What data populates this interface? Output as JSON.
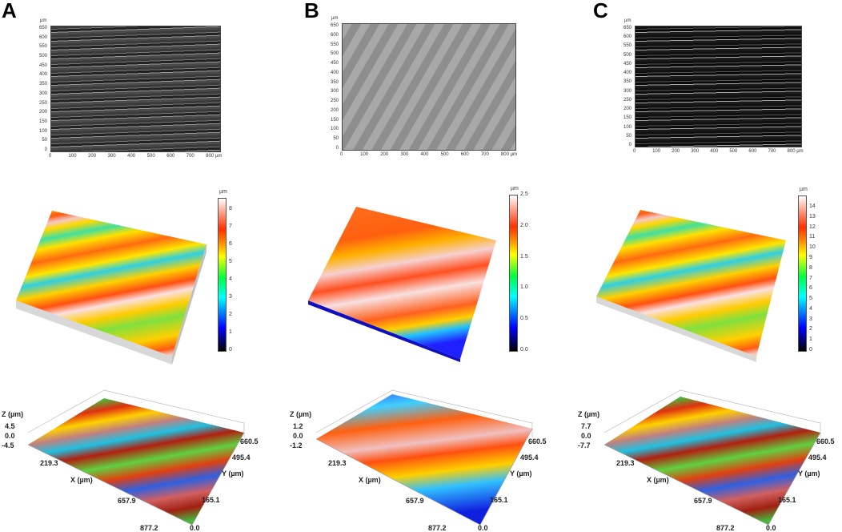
{
  "panels": [
    {
      "label": "A",
      "micrograph": {
        "unit": "µm",
        "y_ticks": [
          "0",
          "50",
          "100",
          "150",
          "200",
          "250",
          "300",
          "350",
          "400",
          "450",
          "500",
          "550",
          "600",
          "650"
        ],
        "x_ticks": [
          "0",
          "100",
          "200",
          "300",
          "400",
          "500",
          "600",
          "700",
          "800 µm"
        ],
        "tone": "dark grey with horizontal scratches"
      },
      "colorbar": {
        "unit": "µm",
        "ticks": [
          "0",
          "1",
          "2",
          "3",
          "4",
          "5",
          "6",
          "7",
          "8"
        ]
      },
      "plot3d": {
        "z_label": "Z (µm)",
        "z_ticks": [
          "4.5",
          "0.0",
          "-4.5"
        ],
        "x_label": "X (µm)",
        "x_ticks": [
          "219.3",
          "657.9",
          "877.2"
        ],
        "y_label": "Y (µm)",
        "y_ticks": [
          "0.0",
          "165.1",
          "495.4",
          "660.5"
        ]
      }
    },
    {
      "label": "B",
      "micrograph": {
        "unit": "µm",
        "y_ticks": [
          "0",
          "50",
          "100",
          "150",
          "200",
          "250",
          "300",
          "350",
          "400",
          "450",
          "500",
          "550",
          "600",
          "650"
        ],
        "x_ticks": [
          "0",
          "100",
          "200",
          "300",
          "400",
          "500",
          "600",
          "700",
          "800 µm"
        ],
        "tone": "light grey smooth with diagonal bands"
      },
      "colorbar": {
        "unit": "µm",
        "ticks": [
          "0.0",
          "0.5",
          "1.0",
          "1.5",
          "2.0",
          "2.5"
        ]
      },
      "plot3d": {
        "z_label": "Z (µm)",
        "z_ticks": [
          "1.2",
          "0.0",
          "-1.2"
        ],
        "x_label": "X (µm)",
        "x_ticks": [
          "219.3",
          "657.9",
          "877.2"
        ],
        "y_label": "Y (µm)",
        "y_ticks": [
          "0.0",
          "165.1",
          "495.4",
          "660.5"
        ]
      }
    },
    {
      "label": "C",
      "micrograph": {
        "unit": "µm",
        "y_ticks": [
          "0",
          "50",
          "100",
          "150",
          "200",
          "250",
          "300",
          "350",
          "400",
          "450",
          "500",
          "550",
          "600",
          "650"
        ],
        "x_ticks": [
          "0",
          "100",
          "200",
          "300",
          "400",
          "500",
          "600",
          "700",
          "800 µm"
        ],
        "tone": "very dark with bright horizontal scratches"
      },
      "colorbar": {
        "unit": "µm",
        "ticks": [
          "0",
          "1",
          "2",
          "3",
          "4",
          "5",
          "6",
          "7",
          "8",
          "9",
          "10",
          "11",
          "12",
          "13",
          "14"
        ]
      },
      "plot3d": {
        "z_label": "Z (µm)",
        "z_ticks": [
          "7.7",
          "0.0",
          "-7.7"
        ],
        "x_label": "X (µm)",
        "x_ticks": [
          "219.3",
          "657.9",
          "877.2"
        ],
        "y_label": "Y (µm)",
        "y_ticks": [
          "0.0",
          "165.1",
          "495.4",
          "660.5"
        ]
      }
    }
  ],
  "colors": {
    "colormap": [
      "#000000",
      "#0000ff",
      "#00ffff",
      "#00ff40",
      "#ffff00",
      "#ff8000",
      "#ff3000",
      "#ffffff"
    ]
  }
}
